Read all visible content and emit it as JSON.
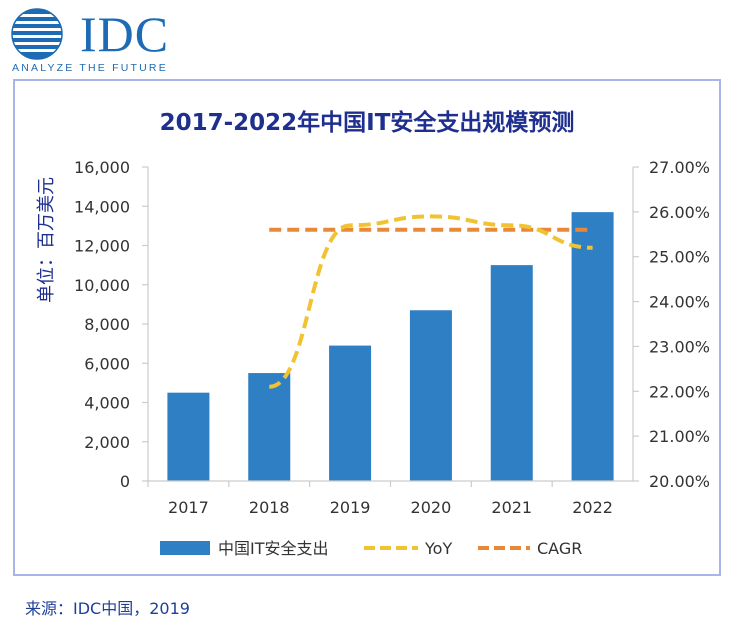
{
  "header": {
    "brand": "IDC",
    "tagline": "ANALYZE THE FUTURE"
  },
  "footer": {
    "source": "来源：IDC中国，2019"
  },
  "colors": {
    "bar": "#2e7fc4",
    "yoy": "#f1c232",
    "cagr": "#e8893a",
    "title": "#1f2f8f",
    "axis_text": "#333333",
    "grid": "#cccccc",
    "frame": "#a8b5e6"
  },
  "chart_data": {
    "type": "bar",
    "title": "2017-2022年中国IT安全支出规模预测",
    "ylabel": "单位：百万美元",
    "categories": [
      "2017",
      "2018",
      "2019",
      "2020",
      "2021",
      "2022"
    ],
    "ylim": [
      0,
      16000
    ],
    "yticks": [
      "0",
      "2,000",
      "4,000",
      "6,000",
      "8,000",
      "10,000",
      "12,000",
      "14,000",
      "16,000"
    ],
    "y2lim": [
      20.0,
      27.0
    ],
    "y2ticks": [
      "20.00%",
      "21.00%",
      "22.00%",
      "23.00%",
      "24.00%",
      "25.00%",
      "26.00%",
      "27.00%"
    ],
    "grid": false,
    "legend_position": "bottom",
    "series": [
      {
        "name": "中国IT安全支出",
        "type": "bar",
        "axis": "left",
        "values": [
          4500,
          5500,
          6900,
          8700,
          11000,
          13700
        ]
      },
      {
        "name": "YoY",
        "type": "line",
        "style": "dashed",
        "axis": "right",
        "values": [
          null,
          22.1,
          25.7,
          25.9,
          25.7,
          25.2
        ]
      },
      {
        "name": "CAGR",
        "type": "line",
        "style": "dashed",
        "axis": "right",
        "values": [
          null,
          25.6,
          25.6,
          25.6,
          25.6,
          25.6
        ]
      }
    ]
  }
}
